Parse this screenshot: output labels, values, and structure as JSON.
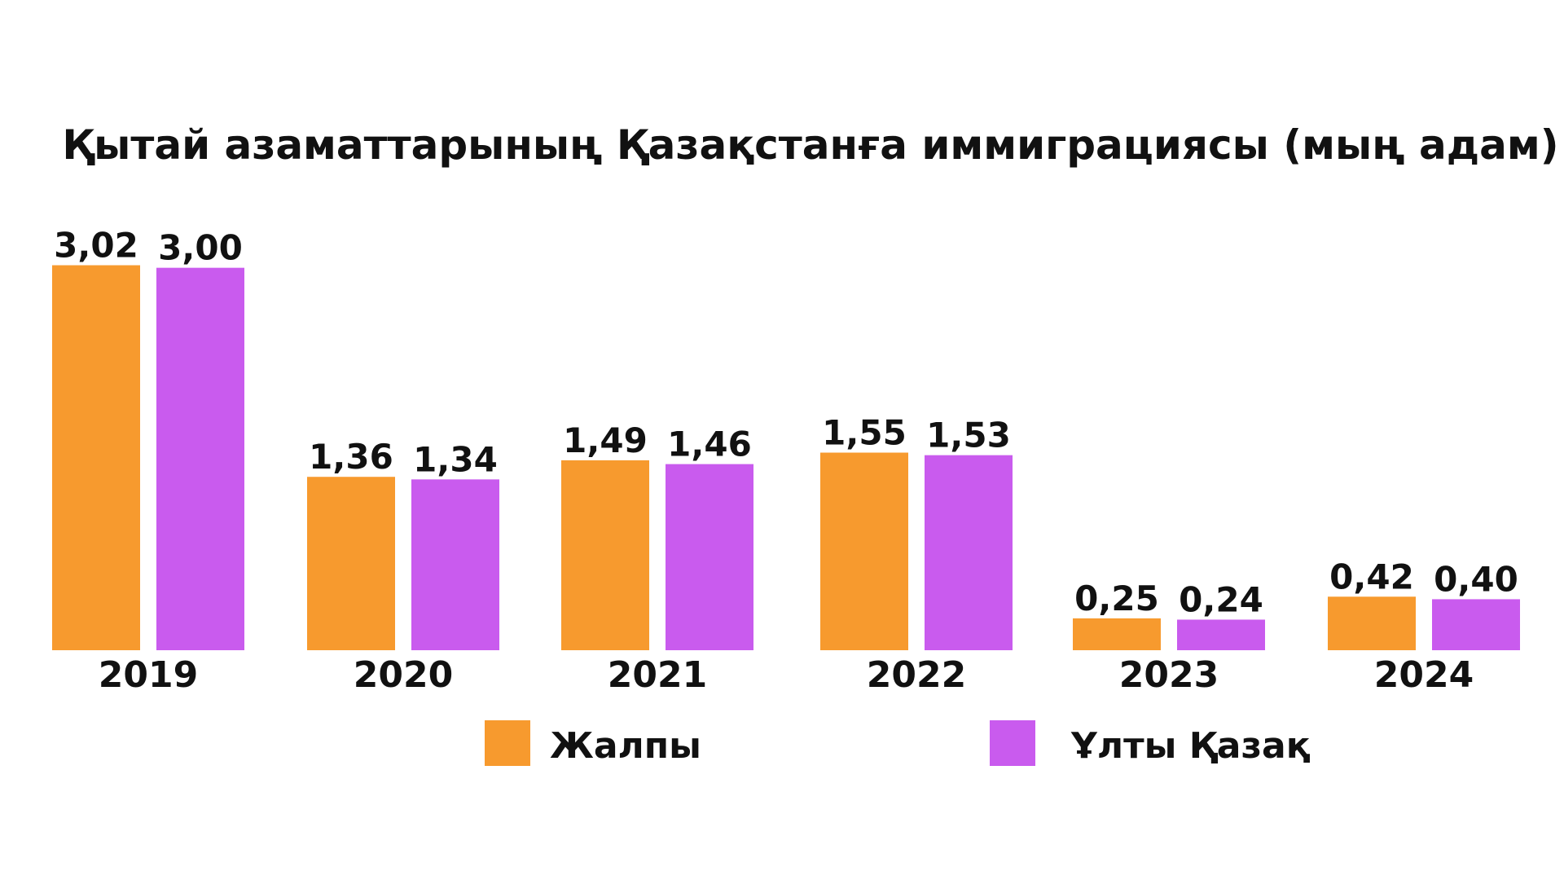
{
  "chart_data": {
    "type": "bar",
    "title": "Қытай азаматтарының Қазақстанға иммиграциясы (мың адам)",
    "xlabel": "",
    "ylabel": "",
    "ylim": [
      0,
      3.1
    ],
    "grid": false,
    "legend_position": "bottom-center",
    "categories": [
      "2019",
      "2020",
      "2021",
      "2022",
      "2023",
      "2024"
    ],
    "series": [
      {
        "name": "Жалпы",
        "color": "#F79A2E",
        "values": [
          3.02,
          1.36,
          1.49,
          1.55,
          0.25,
          0.42
        ],
        "labels": [
          "3,02",
          "1,36",
          "1,49",
          "1,55",
          "0,25",
          "0,42"
        ]
      },
      {
        "name": "Ұлты Қазақ",
        "color": "#C95BEE",
        "values": [
          3.0,
          1.34,
          1.46,
          1.53,
          0.24,
          0.4
        ],
        "labels": [
          "3,00",
          "1,34",
          "1,46",
          "1,53",
          "0,24",
          "0,40"
        ]
      }
    ]
  }
}
